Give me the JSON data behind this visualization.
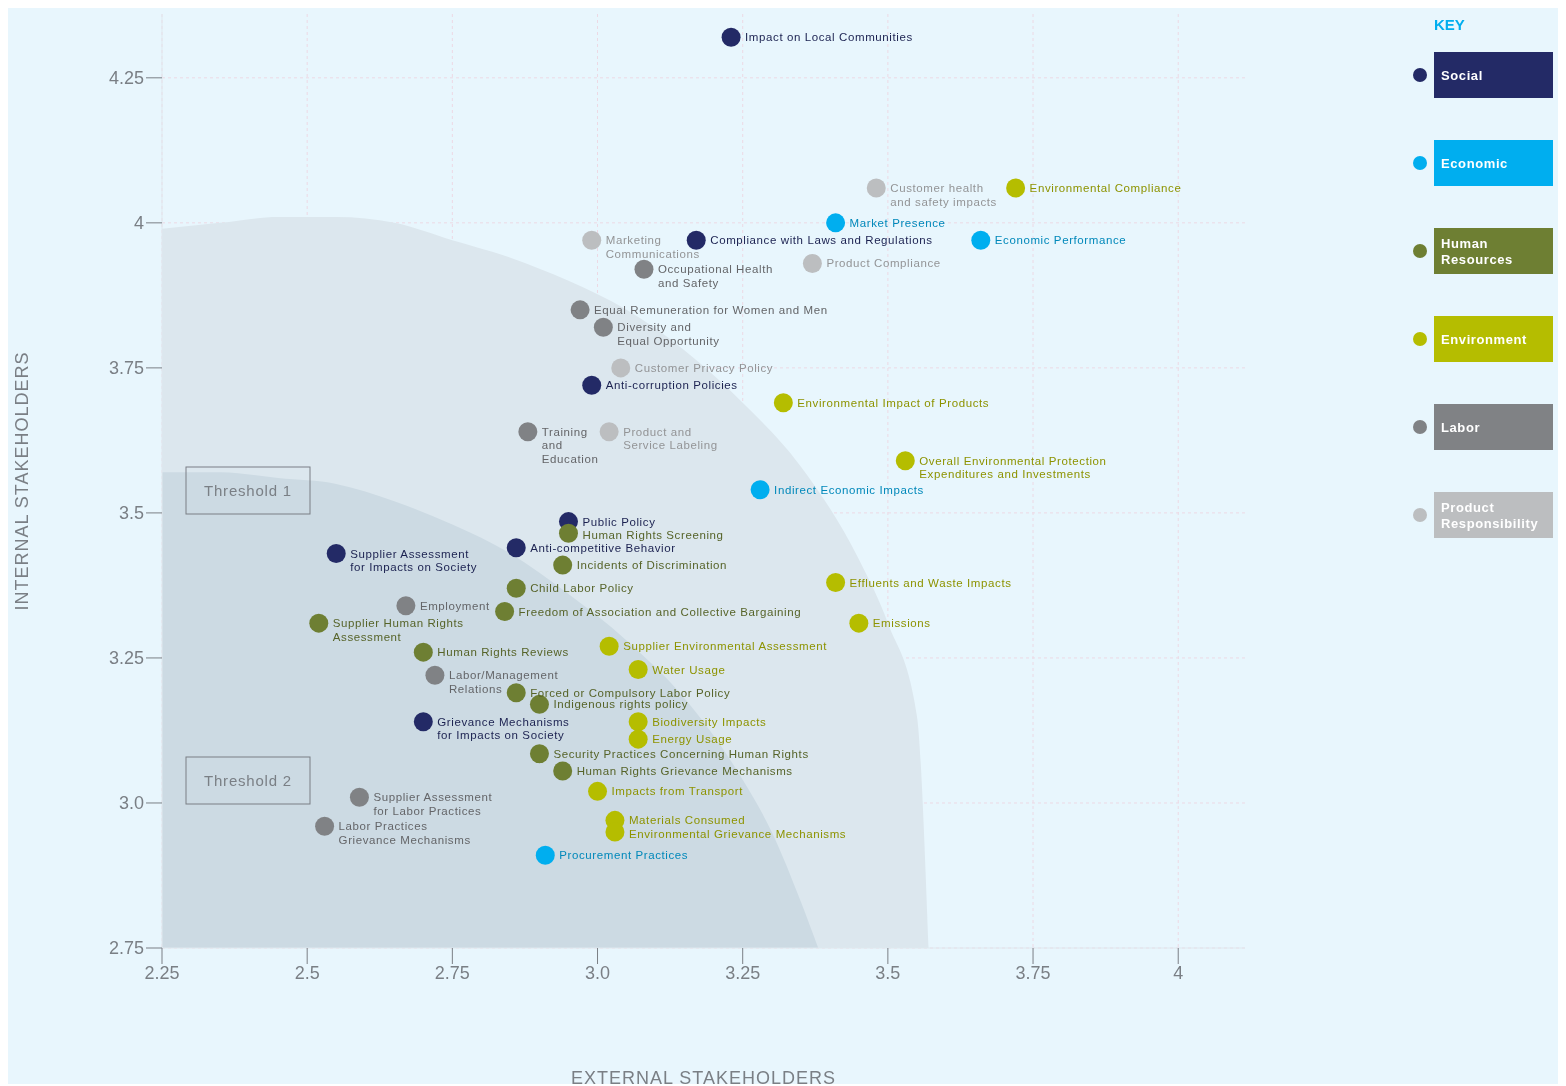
{
  "chart_data": {
    "type": "scatter",
    "xlabel": "EXTERNAL STAKEHOLDERS",
    "ylabel": "INTERNAL STAKEHOLDERS",
    "legend_title": "KEY",
    "legend": "right",
    "grid": true,
    "marker": "circle",
    "xlim": [
      2.25,
      4.115
    ],
    "ylim": [
      2.75,
      4.36
    ],
    "xticks": [
      2.25,
      2.5,
      2.75,
      {
        "value": 3,
        "label": "3.0"
      },
      3.25,
      3.5,
      3.75,
      4
    ],
    "yticks": [
      2.75,
      {
        "value": 3,
        "label": "3.0"
      },
      3.25,
      3.5,
      3.75,
      4,
      4.25
    ],
    "series": [
      {
        "name": "Threshold 1",
        "type": "area",
        "marker": "none",
        "color": "#dce7ee",
        "x": [
          2.25,
          2.35,
          2.45,
          2.55,
          2.65,
          2.75,
          2.85,
          2.95,
          3.05,
          3.15,
          3.25,
          3.35,
          3.45,
          3.5,
          3.55,
          3.57
        ],
        "values": [
          3.99,
          4.0,
          4.01,
          4.01,
          4.0,
          3.97,
          3.94,
          3.9,
          3.85,
          3.78,
          3.69,
          3.58,
          3.42,
          3.31,
          3.15,
          2.75
        ]
      },
      {
        "name": "Threshold 2",
        "type": "area",
        "marker": "none",
        "color": "#ccdae3",
        "x": [
          2.25,
          2.35,
          2.45,
          2.55,
          2.65,
          2.75,
          2.85,
          2.95,
          3.05,
          3.15,
          3.25,
          3.3,
          3.35,
          3.38
        ],
        "values": [
          3.57,
          3.57,
          3.56,
          3.55,
          3.52,
          3.48,
          3.43,
          3.36,
          3.28,
          3.18,
          3.04,
          2.95,
          2.83,
          2.75
        ]
      },
      {
        "name": "Social",
        "color": "#232a66",
        "x": [
          3.23,
          3.17,
          2.99,
          2.95,
          2.86,
          2.55,
          2.7
        ],
        "values": [
          4.32,
          3.97,
          3.72,
          3.485,
          3.44,
          3.43,
          3.14
        ]
      },
      {
        "name": "Economic",
        "color": "#00aeef",
        "x": [
          3.41,
          3.66,
          3.28,
          2.91
        ],
        "values": [
          4.0,
          3.97,
          3.54,
          2.91
        ]
      },
      {
        "name": "Human Resources",
        "color": "#6e7f33",
        "x": [
          2.95,
          2.94,
          2.86,
          2.84,
          2.52,
          2.7,
          2.86,
          2.9,
          2.9,
          2.94
        ],
        "values": [
          3.465,
          3.41,
          3.37,
          3.33,
          3.31,
          3.26,
          3.19,
          3.17,
          3.085,
          3.055
        ]
      },
      {
        "name": "Environment",
        "color": "#b5bd00",
        "x": [
          3.72,
          3.32,
          3.53,
          3.41,
          3.45,
          3.02,
          3.07,
          3.07,
          3.07,
          3.0,
          3.03,
          3.03
        ],
        "values": [
          4.06,
          3.69,
          3.59,
          3.38,
          3.31,
          3.27,
          3.23,
          3.14,
          3.11,
          3.02,
          2.97,
          2.95
        ]
      },
      {
        "name": "Labor",
        "color": "#808285",
        "x": [
          3.08,
          2.97,
          3.01,
          2.88,
          2.67,
          2.72,
          2.59,
          2.53
        ],
        "values": [
          3.92,
          3.85,
          3.82,
          3.64,
          3.34,
          3.22,
          3.01,
          2.96
        ]
      },
      {
        "name": "Product Responsibility",
        "color": "#bcbec0",
        "x": [
          3.48,
          2.99,
          3.37,
          3.04,
          3.02
        ],
        "values": [
          4.06,
          3.97,
          3.93,
          3.75,
          3.64
        ]
      }
    ],
    "annotations": [
      {
        "text": "Impact on Local Communities",
        "x": 3.23,
        "y": 4.32
      },
      {
        "text": "Compliance with Laws and Regulations",
        "x": 3.17,
        "y": 3.97
      },
      {
        "text": "Anti-corruption Policies",
        "x": 2.99,
        "y": 3.72
      },
      {
        "text": "Public Policy",
        "x": 2.95,
        "y": 3.485
      },
      {
        "text": "Anti-competitive Behavior",
        "x": 2.86,
        "y": 3.44
      },
      {
        "text": "Supplier Assessment\nfor Impacts on Society",
        "x": 2.55,
        "y": 3.43
      },
      {
        "text": "Grievance Mechanisms\nfor Impacts on Society",
        "x": 2.7,
        "y": 3.14
      },
      {
        "text": "Market Presence",
        "x": 3.41,
        "y": 4.0
      },
      {
        "text": "Economic Performance",
        "x": 3.66,
        "y": 3.97
      },
      {
        "text": "Indirect Economic Impacts",
        "x": 3.28,
        "y": 3.54
      },
      {
        "text": "Procurement Practices",
        "x": 2.91,
        "y": 2.91
      },
      {
        "text": "Human Rights Screening",
        "x": 2.95,
        "y": 3.465
      },
      {
        "text": "Incidents of Discrimination",
        "x": 2.94,
        "y": 3.41
      },
      {
        "text": "Child Labor Policy",
        "x": 2.86,
        "y": 3.37
      },
      {
        "text": "Freedom of Association and Collective Bargaining",
        "x": 2.84,
        "y": 3.33
      },
      {
        "text": "Supplier Human Rights\nAssessment",
        "x": 2.52,
        "y": 3.31
      },
      {
        "text": "Human Rights Reviews",
        "x": 2.7,
        "y": 3.26
      },
      {
        "text": "Forced or Compulsory Labor Policy",
        "x": 2.86,
        "y": 3.19
      },
      {
        "text": "Indigenous rights policy",
        "x": 2.9,
        "y": 3.17
      },
      {
        "text": "Security Practices Concerning Human Rights",
        "x": 2.9,
        "y": 3.085
      },
      {
        "text": "Human Rights Grievance Mechanisms",
        "x": 2.94,
        "y": 3.055
      },
      {
        "text": "Environmental Compliance",
        "x": 3.72,
        "y": 4.06
      },
      {
        "text": "Environmental Impact of Products",
        "x": 3.32,
        "y": 3.69
      },
      {
        "text": "Overall Environmental Protection\nExpenditures and Investments",
        "x": 3.53,
        "y": 3.59
      },
      {
        "text": "Effluents and Waste Impacts",
        "x": 3.41,
        "y": 3.38
      },
      {
        "text": "Emissions",
        "x": 3.45,
        "y": 3.31
      },
      {
        "text": "Supplier Environmental Assessment",
        "x": 3.02,
        "y": 3.27
      },
      {
        "text": "Water Usage",
        "x": 3.07,
        "y": 3.23
      },
      {
        "text": "Biodiversity Impacts",
        "x": 3.07,
        "y": 3.14
      },
      {
        "text": "Energy Usage",
        "x": 3.07,
        "y": 3.11
      },
      {
        "text": "Impacts from Transport",
        "x": 3.0,
        "y": 3.02
      },
      {
        "text": "Materials Consumed",
        "x": 3.03,
        "y": 2.97
      },
      {
        "text": "Environmental Grievance Mechanisms",
        "x": 3.03,
        "y": 2.95
      },
      {
        "text": "Occupational Health\nand Safety",
        "x": 3.08,
        "y": 3.92
      },
      {
        "text": "Equal Remuneration for Women and Men",
        "x": 2.97,
        "y": 3.85
      },
      {
        "text": "Diversity and\nEqual Opportunity",
        "x": 3.01,
        "y": 3.82
      },
      {
        "text": "Training\nand\nEducation",
        "x": 2.88,
        "y": 3.64
      },
      {
        "text": "Employment",
        "x": 2.67,
        "y": 3.34
      },
      {
        "text": "Labor/Management\nRelations",
        "x": 2.72,
        "y": 3.22
      },
      {
        "text": "Supplier Assessment\nfor Labor Practices",
        "x": 2.59,
        "y": 3.01
      },
      {
        "text": "Labor Practices\nGrievance Mechanisms",
        "x": 2.53,
        "y": 2.96
      },
      {
        "text": "Customer health\nand safety impacts",
        "x": 3.48,
        "y": 4.06
      },
      {
        "text": "Marketing\nCommunications",
        "x": 2.99,
        "y": 3.97
      },
      {
        "text": "Product Compliance",
        "x": 3.37,
        "y": 3.93
      },
      {
        "text": "Customer Privacy Policy",
        "x": 3.04,
        "y": 3.75
      },
      {
        "text": "Product and\nService Labeling",
        "x": 3.02,
        "y": 3.64
      }
    ]
  }
}
